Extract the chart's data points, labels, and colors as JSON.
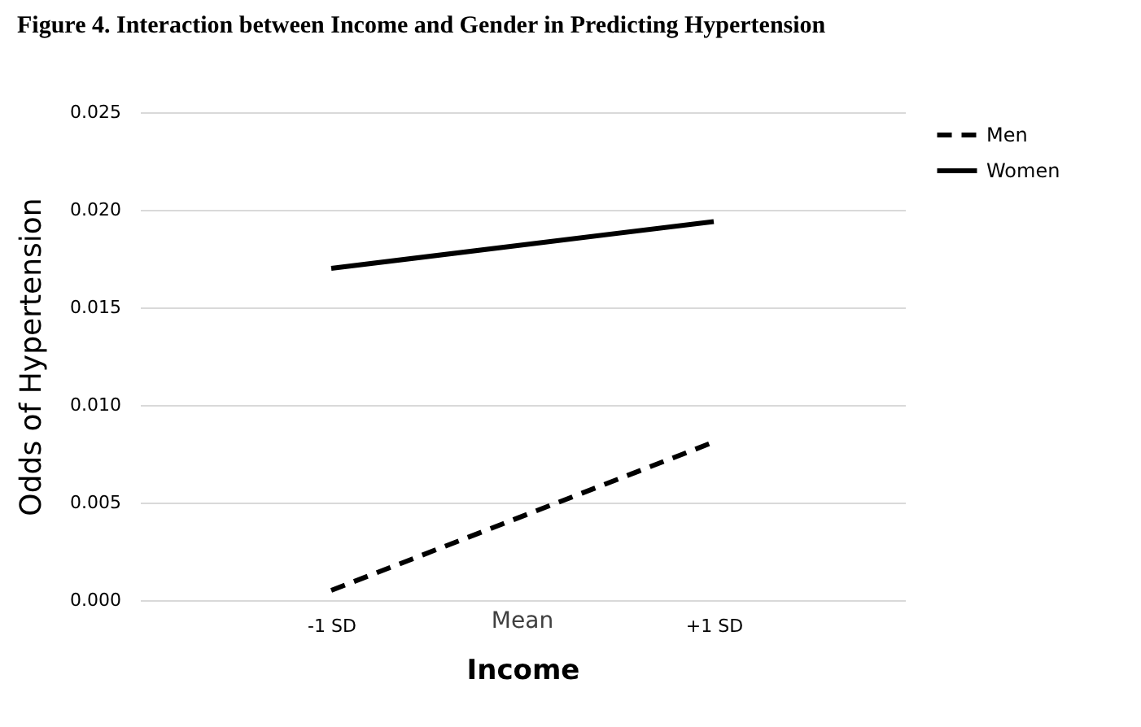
{
  "chart_data": {
    "type": "line",
    "title": "Figure 4.  Interaction between Income and Gender in Predicting Hypertension",
    "xlabel": "Income",
    "ylabel": "Odds of Hypertension",
    "categories": [
      "-1 SD",
      "+1 SD"
    ],
    "series": [
      {
        "name": "Men",
        "color": "#000000",
        "values": [
          0.0005,
          0.0081
        ],
        "line_style": "dashed"
      },
      {
        "name": "Women",
        "color": "#000000",
        "values": [
          0.017,
          0.0194
        ],
        "line_style": "solid"
      }
    ],
    "ylim": [
      0,
      0.025
    ],
    "yticks": [
      {
        "value": 0,
        "label": "0.000"
      },
      {
        "value": 0.005,
        "label": "0.005"
      },
      {
        "value": 0.01,
        "label": "0.010"
      },
      {
        "value": 0.015,
        "label": "0.015"
      },
      {
        "value": 0.02,
        "label": "0.020"
      },
      {
        "value": 0.025,
        "label": "0.025"
      }
    ],
    "grid": "y",
    "legend": "right",
    "marker": "none",
    "annotations": [
      "Mean"
    ]
  }
}
